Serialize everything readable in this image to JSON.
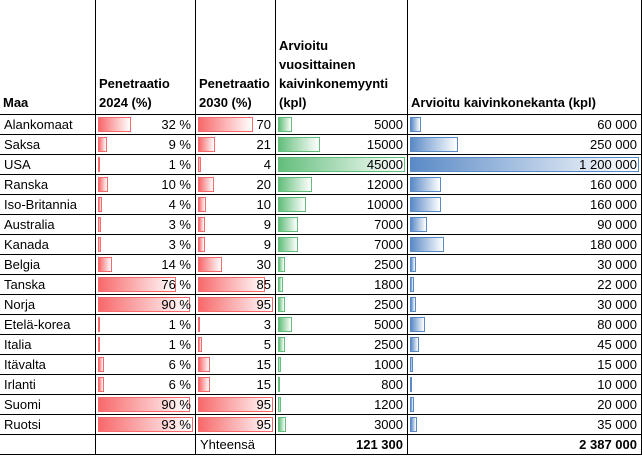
{
  "table": {
    "columns": [
      "Maa",
      "Penetraatio 2024 (%)",
      "Penetraatio 2030 (%)",
      "Arvioitu vuosittainen kaivinkonemyynti (kpl)",
      "Arvioitu kaivinkonekanta (kpl)"
    ],
    "data_bars": {
      "1": "#f8696b",
      "2": "#f8696b",
      "3": "#63be7b",
      "4": "#5a8ac6"
    },
    "rows": [
      [
        "Alankomaat",
        {
          "value": 32,
          "label": "32 %"
        },
        70,
        5000,
        {
          "value": 60000,
          "label": "60 000"
        }
      ],
      [
        "Saksa",
        {
          "value": 9,
          "label": "9 %"
        },
        21,
        15000,
        {
          "value": 250000,
          "label": "250 000"
        }
      ],
      [
        "USA",
        {
          "value": 1,
          "label": "1 %"
        },
        4,
        45000,
        {
          "value": 1200000,
          "label": "1 200 000"
        }
      ],
      [
        "Ranska",
        {
          "value": 10,
          "label": "10 %"
        },
        20,
        12000,
        {
          "value": 160000,
          "label": "160 000"
        }
      ],
      [
        "Iso-Britannia",
        {
          "value": 4,
          "label": "4 %"
        },
        10,
        10000,
        {
          "value": 160000,
          "label": "160 000"
        }
      ],
      [
        "Australia",
        {
          "value": 3,
          "label": "3 %"
        },
        9,
        7000,
        {
          "value": 90000,
          "label": "90 000"
        }
      ],
      [
        "Kanada",
        {
          "value": 3,
          "label": "3 %"
        },
        9,
        7000,
        {
          "value": 180000,
          "label": "180 000"
        }
      ],
      [
        "Belgia",
        {
          "value": 14,
          "label": "14 %"
        },
        30,
        2500,
        {
          "value": 30000,
          "label": "30 000"
        }
      ],
      [
        "Tanska",
        {
          "value": 76,
          "label": "76 %"
        },
        85,
        1800,
        {
          "value": 22000,
          "label": "22 000"
        }
      ],
      [
        "Norja",
        {
          "value": 90,
          "label": "90 %"
        },
        95,
        2500,
        {
          "value": 30000,
          "label": "30 000"
        }
      ],
      [
        "Etelä-korea",
        {
          "value": 1,
          "label": "1 %"
        },
        3,
        5000,
        {
          "value": 80000,
          "label": "80 000"
        }
      ],
      [
        "Italia",
        {
          "value": 1,
          "label": "1 %"
        },
        5,
        2500,
        {
          "value": 45000,
          "label": "45 000"
        }
      ],
      [
        "Itävalta",
        {
          "value": 6,
          "label": "6 %"
        },
        15,
        1000,
        {
          "value": 15000,
          "label": "15 000"
        }
      ],
      [
        "Irlanti",
        {
          "value": 6,
          "label": "6 %"
        },
        15,
        800,
        {
          "value": 10000,
          "label": "10 000"
        }
      ],
      [
        "Suomi",
        {
          "value": 90,
          "label": "90 %"
        },
        95,
        1200,
        {
          "value": 20000,
          "label": "20 000"
        }
      ],
      [
        "Ruotsi",
        {
          "value": 93,
          "label": "93 %"
        },
        95,
        3000,
        {
          "value": 35000,
          "label": "35 000"
        }
      ]
    ],
    "total": {
      "label": "Yhteensä",
      "sales": {
        "value": 121300,
        "label": "121 300"
      },
      "fleet": {
        "value": 2387000,
        "label": "2 387 000"
      }
    }
  }
}
